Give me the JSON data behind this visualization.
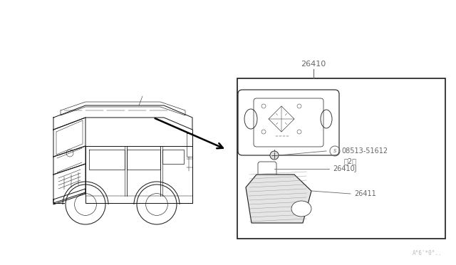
{
  "bg_color": "#ffffff",
  "line_color": "#1a1a1a",
  "gray_color": "#666666",
  "light_gray": "#aaaaaa",
  "dark_gray": "#444444",
  "part_number_26410": "26410",
  "part_number_08513": "08513-51612",
  "part_qty": "（2）",
  "part_number_26410J": "26410J",
  "part_number_26411": "26411",
  "watermark": "A°6’*0°..",
  "car_color": "#111111",
  "figsize": [
    6.4,
    3.72
  ],
  "dpi": 100
}
